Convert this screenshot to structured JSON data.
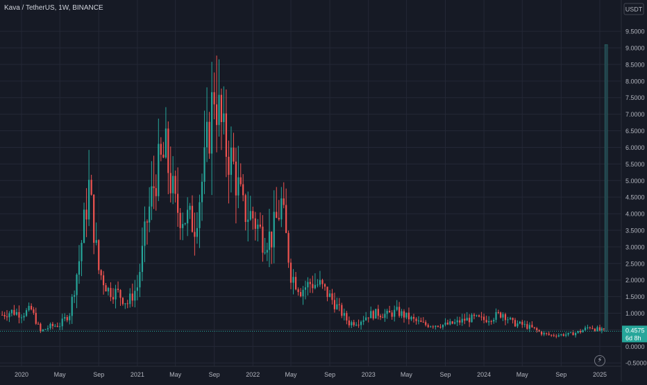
{
  "header": {
    "title": "Kava / TetherUS, 1W, BINANCE"
  },
  "icons": {
    "flash": "lightning-icon"
  },
  "colors": {
    "background": "#161a25",
    "grid": "#242836",
    "up": "#26a69a",
    "down": "#ef5350",
    "axis_text": "#b2b5be",
    "price_label_bg": "#26a69a",
    "volume_bar": "#22404a"
  },
  "chart_data": {
    "type": "candlestick",
    "title": "Kava / TetherUS, 1W, BINANCE",
    "y_unit": "USDT",
    "ylim": [
      -0.6,
      9.9
    ],
    "y_ticks": [
      "9.5000",
      "9.0000",
      "8.5000",
      "8.0000",
      "7.5000",
      "7.0000",
      "6.5000",
      "6.0000",
      "5.5000",
      "5.0000",
      "4.5000",
      "4.0000",
      "3.5000",
      "3.0000",
      "2.5000",
      "2.0000",
      "1.5000",
      "1.0000",
      "0.5000",
      "0.0000",
      "-0.5000"
    ],
    "y_tick_values": [
      9.5,
      9.0,
      8.5,
      8.0,
      7.5,
      7.0,
      6.5,
      6.0,
      5.5,
      5.0,
      4.5,
      4.0,
      3.5,
      3.0,
      2.5,
      2.0,
      1.5,
      1.0,
      0.5,
      0.0,
      -0.5
    ],
    "x_ticks": [
      "2020",
      "May",
      "Sep",
      "2021",
      "May",
      "Sep",
      "2022",
      "May",
      "Sep",
      "2023",
      "May",
      "Sep",
      "2024",
      "May",
      "Sep",
      "2025"
    ],
    "x_tick_dates": [
      "2020-01-01",
      "2020-05-01",
      "2020-09-01",
      "2021-01-01",
      "2021-05-01",
      "2021-09-01",
      "2022-01-01",
      "2022-05-01",
      "2022-09-01",
      "2023-01-01",
      "2023-05-01",
      "2023-09-01",
      "2024-01-01",
      "2024-05-01",
      "2024-09-01",
      "2025-01-01"
    ],
    "grid": true,
    "last_price": {
      "value": "0.4575",
      "countdown": "6d 8h"
    },
    "series": [
      {
        "type": "close",
        "points": [
          [
            "2019-11-01",
            0.95
          ],
          [
            "2019-12-01",
            1.05
          ],
          [
            "2020-01-01",
            0.98
          ],
          [
            "2020-02-01",
            1.1
          ],
          [
            "2020-03-01",
            0.45
          ],
          [
            "2020-04-01",
            0.6
          ],
          [
            "2020-05-01",
            0.65
          ],
          [
            "2020-06-01",
            1.0
          ],
          [
            "2020-07-01",
            2.6
          ],
          [
            "2020-08-01",
            4.8
          ],
          [
            "2020-09-01",
            2.3
          ],
          [
            "2020-10-01",
            1.7
          ],
          [
            "2020-11-01",
            1.6
          ],
          [
            "2020-12-01",
            1.3
          ],
          [
            "2021-01-01",
            1.8
          ],
          [
            "2021-02-01",
            3.8
          ],
          [
            "2021-03-01",
            5.2
          ],
          [
            "2021-04-01",
            5.8
          ],
          [
            "2021-05-01",
            4.2
          ],
          [
            "2021-06-01",
            3.9
          ],
          [
            "2021-07-01",
            3.7
          ],
          [
            "2021-08-01",
            5.4
          ],
          [
            "2021-09-01",
            7.8
          ],
          [
            "2021-10-01",
            6.2
          ],
          [
            "2021-11-01",
            5.4
          ],
          [
            "2021-12-01",
            4.1
          ],
          [
            "2022-01-01",
            3.9
          ],
          [
            "2022-02-01",
            3.3
          ],
          [
            "2022-03-01",
            3.3
          ],
          [
            "2022-04-01",
            4.3
          ],
          [
            "2022-05-01",
            2.2
          ],
          [
            "2022-06-01",
            1.7
          ],
          [
            "2022-07-01",
            1.9
          ],
          [
            "2022-08-01",
            1.85
          ],
          [
            "2022-09-01",
            1.5
          ],
          [
            "2022-10-01",
            1.1
          ],
          [
            "2022-11-01",
            0.7
          ],
          [
            "2022-12-01",
            0.75
          ],
          [
            "2023-01-01",
            0.95
          ],
          [
            "2023-02-01",
            1.0
          ],
          [
            "2023-03-01",
            0.95
          ],
          [
            "2023-04-01",
            1.05
          ],
          [
            "2023-05-01",
            0.9
          ],
          [
            "2023-06-01",
            0.75
          ],
          [
            "2023-07-01",
            0.65
          ],
          [
            "2023-08-01",
            0.65
          ],
          [
            "2023-09-01",
            0.65
          ],
          [
            "2023-10-01",
            0.7
          ],
          [
            "2023-11-01",
            0.8
          ],
          [
            "2023-12-01",
            0.85
          ],
          [
            "2024-01-01",
            0.8
          ],
          [
            "2024-02-01",
            0.9
          ],
          [
            "2024-03-01",
            1.0
          ],
          [
            "2024-04-01",
            0.7
          ],
          [
            "2024-05-01",
            0.65
          ],
          [
            "2024-06-01",
            0.55
          ],
          [
            "2024-07-01",
            0.4
          ],
          [
            "2024-08-01",
            0.33
          ],
          [
            "2024-09-01",
            0.35
          ],
          [
            "2024-10-01",
            0.37
          ],
          [
            "2024-11-01",
            0.45
          ],
          [
            "2024-12-01",
            0.6
          ],
          [
            "2025-01-01",
            0.48
          ],
          [
            "2025-01-20",
            0.4575
          ]
        ]
      },
      {
        "type": "volume",
        "points": [
          [
            "2025-01-20",
            9.1
          ]
        ]
      }
    ]
  }
}
